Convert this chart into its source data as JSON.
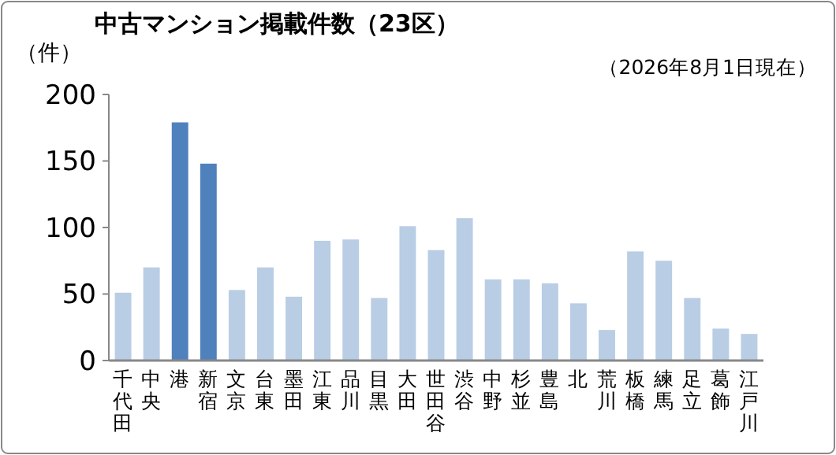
{
  "chart_data": {
    "type": "bar",
    "title": "中古マンション掲載件数（23区）",
    "subtitle": "（2026年8月1日現在）",
    "ylabel": "（件）",
    "categories": [
      "千代田",
      "中央",
      "港",
      "新宿",
      "文京",
      "台東",
      "墨田",
      "江東",
      "品川",
      "目黒",
      "大田",
      "世田谷",
      "渋谷",
      "中野",
      "杉並",
      "豊島",
      "北",
      "荒川",
      "板橋",
      "練馬",
      "足立",
      "葛飾",
      "江戸川"
    ],
    "values": [
      51,
      70,
      179,
      148,
      53,
      70,
      48,
      90,
      91,
      47,
      101,
      83,
      107,
      61,
      61,
      58,
      43,
      23,
      82,
      75,
      47,
      24,
      20
    ],
    "colors": [
      "#b9cde5",
      "#b9cde5",
      "#4f81bd",
      "#4f81bd",
      "#b9cde5",
      "#b9cde5",
      "#b9cde5",
      "#b9cde5",
      "#b9cde5",
      "#b9cde5",
      "#b9cde5",
      "#b9cde5",
      "#b9cde5",
      "#b9cde5",
      "#b9cde5",
      "#b9cde5",
      "#b9cde5",
      "#b9cde5",
      "#b9cde5",
      "#b9cde5",
      "#b9cde5",
      "#b9cde5",
      "#b9cde5"
    ],
    "ylim": [
      0,
      200
    ],
    "yticks": [
      0,
      50,
      100,
      150,
      200
    ],
    "grid": false
  }
}
